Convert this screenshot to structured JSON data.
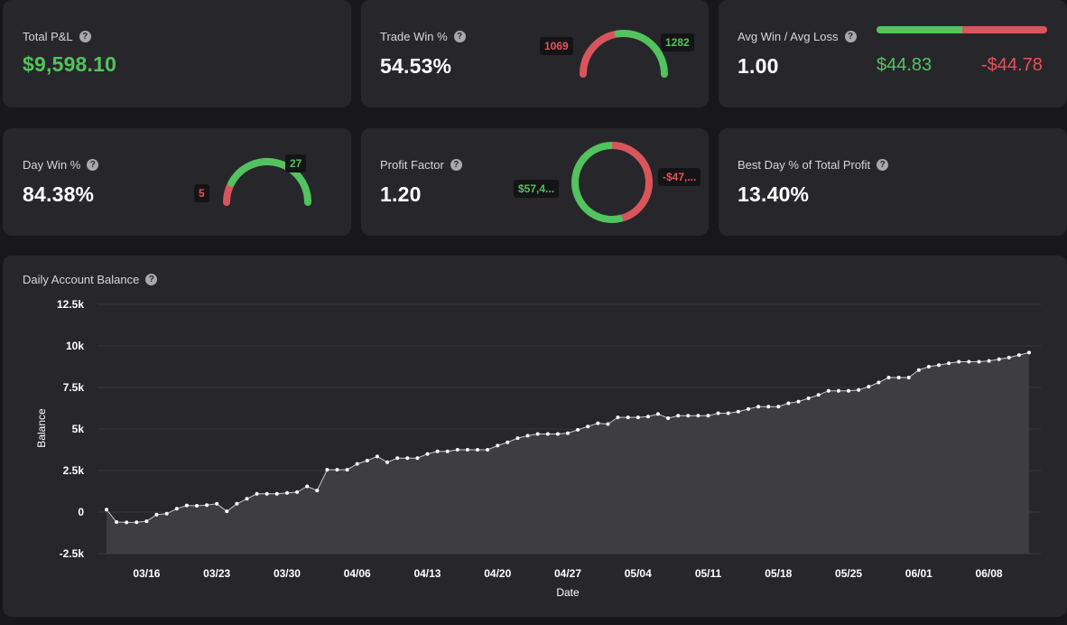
{
  "colors": {
    "green": "#52c35e",
    "red": "#d9555c",
    "background": "#18181b",
    "card": "#27272b"
  },
  "cards": {
    "total_pnl": {
      "label": "Total P&L",
      "value": "$9,598.10"
    },
    "trade_win": {
      "label": "Trade Win %",
      "value": "54.53%",
      "losses": "1069",
      "wins": "1282"
    },
    "avg_win_loss": {
      "label": "Avg Win / Avg Loss",
      "value": "1.00",
      "avg_win": "$44.83",
      "avg_loss": "-$44.78"
    },
    "day_win": {
      "label": "Day Win %",
      "value": "84.38%",
      "losses": "5",
      "wins": "27"
    },
    "profit_factor": {
      "label": "Profit Factor",
      "value": "1.20",
      "gross_profit": "$57,4...",
      "gross_loss": "-$47,..."
    },
    "best_day": {
      "label": "Best Day % of Total Profit",
      "value": "13.40%"
    }
  },
  "help_icon_glyph": "?",
  "chart_data": {
    "type": "area",
    "title": "Daily Account Balance",
    "xlabel": "Date",
    "ylabel": "Balance",
    "ylim": [
      -2500,
      12500
    ],
    "yticks": [
      -2500,
      0,
      2500,
      5000,
      7500,
      10000,
      12500
    ],
    "ytick_labels": [
      "-2.5k",
      "0",
      "2.5k",
      "5k",
      "7.5k",
      "10k",
      "12.5k"
    ],
    "xtick_labels": [
      "03/16",
      "03/23",
      "03/30",
      "04/06",
      "04/13",
      "04/20",
      "04/27",
      "05/04",
      "05/11",
      "05/18",
      "05/25",
      "06/01",
      "06/08"
    ],
    "grid": true,
    "series": [
      {
        "values": [
          150,
          -600,
          -620,
          -610,
          -550,
          -150,
          -100,
          200,
          400,
          380,
          420,
          500,
          50,
          500,
          800,
          1100,
          1100,
          1100,
          1150,
          1200,
          1550,
          1300,
          2550,
          2550,
          2550,
          2900,
          3100,
          3350,
          3000,
          3250,
          3250,
          3250,
          3500,
          3650,
          3650,
          3750,
          3750,
          3750,
          3750,
          4000,
          4200,
          4450,
          4600,
          4700,
          4700,
          4700,
          4750,
          4950,
          5150,
          5350,
          5300,
          5700,
          5700,
          5700,
          5750,
          5900,
          5650,
          5800,
          5800,
          5800,
          5800,
          5950,
          5950,
          6050,
          6200,
          6350,
          6350,
          6350,
          6550,
          6650,
          6850,
          7050,
          7300,
          7300,
          7300,
          7350,
          7550,
          7800,
          8100,
          8100,
          8100,
          8550,
          8750,
          8850,
          8950,
          9050,
          9050,
          9050,
          9100,
          9200,
          9300,
          9450,
          9600
        ]
      }
    ]
  }
}
